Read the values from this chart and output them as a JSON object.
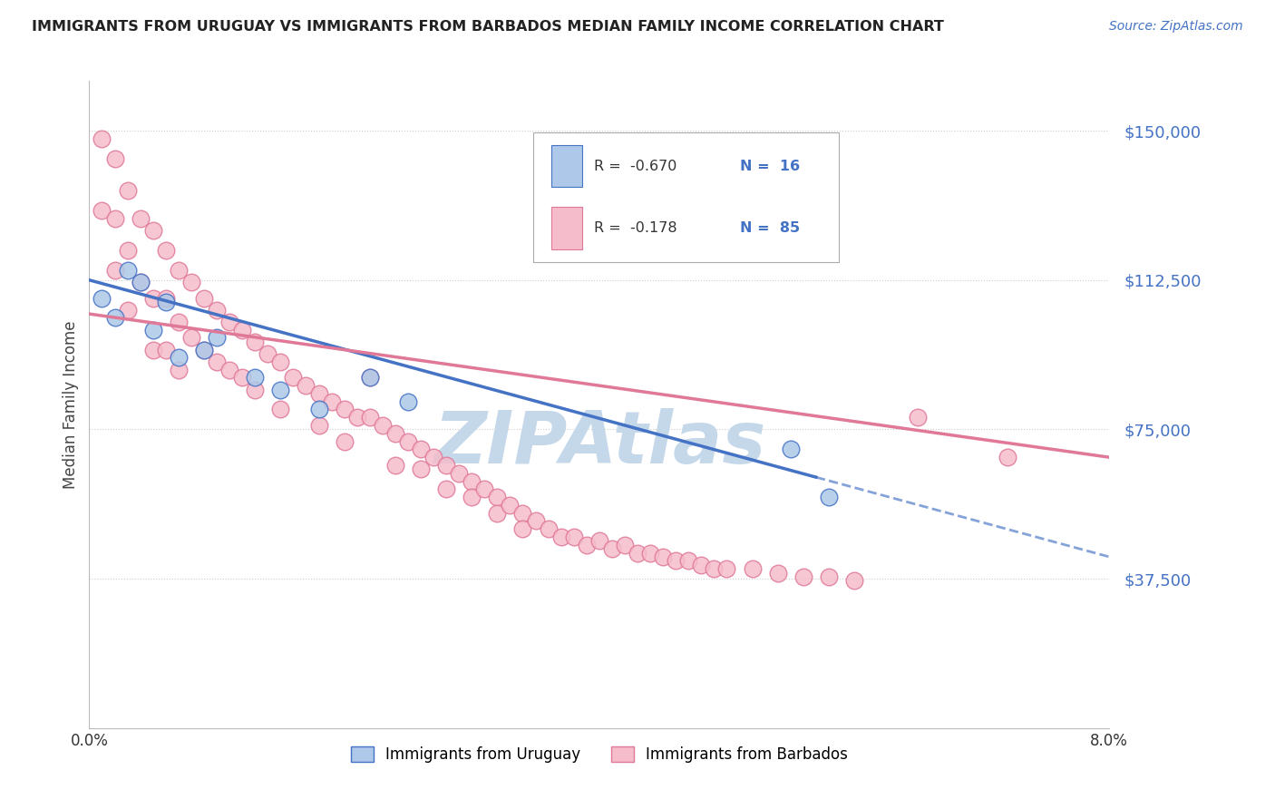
{
  "title": "IMMIGRANTS FROM URUGUAY VS IMMIGRANTS FROM BARBADOS MEDIAN FAMILY INCOME CORRELATION CHART",
  "source": "Source: ZipAtlas.com",
  "ylabel": "Median Family Income",
  "ytick_labels": [
    "$37,500",
    "$75,000",
    "$112,500",
    "$150,000"
  ],
  "ytick_values": [
    37500,
    75000,
    112500,
    150000
  ],
  "xlim": [
    0.0,
    0.08
  ],
  "ylim": [
    0,
    162500
  ],
  "legend_r_uruguay": "R =  -0.670",
  "legend_n_uruguay": "N =  16",
  "legend_r_barbados": "R =  -0.178",
  "legend_n_barbados": "N =  85",
  "legend_label_uruguay": "Immigrants from Uruguay",
  "legend_label_barbados": "Immigrants from Barbados",
  "color_uruguay": "#adc8e8",
  "color_barbados": "#f5bccb",
  "color_line_uruguay": "#4472c4",
  "color_line_barbados": "#e07898",
  "color_source": "#4472c4",
  "color_yticks": "#4472c4",
  "watermark": "ZIPAtlas",
  "watermark_color": "#c5d8ea",
  "uruguay_x": [
    0.001,
    0.002,
    0.003,
    0.004,
    0.005,
    0.006,
    0.007,
    0.009,
    0.01,
    0.013,
    0.015,
    0.018,
    0.022,
    0.025,
    0.055,
    0.058
  ],
  "uruguay_y": [
    108000,
    103000,
    115000,
    112000,
    100000,
    107000,
    93000,
    95000,
    98000,
    88000,
    85000,
    80000,
    88000,
    82000,
    70000,
    58000
  ],
  "barbados_x": [
    0.001,
    0.001,
    0.002,
    0.002,
    0.002,
    0.003,
    0.003,
    0.003,
    0.004,
    0.004,
    0.005,
    0.005,
    0.005,
    0.006,
    0.006,
    0.006,
    0.007,
    0.007,
    0.007,
    0.008,
    0.008,
    0.009,
    0.009,
    0.01,
    0.01,
    0.011,
    0.011,
    0.012,
    0.012,
    0.013,
    0.013,
    0.014,
    0.015,
    0.015,
    0.016,
    0.017,
    0.018,
    0.018,
    0.019,
    0.02,
    0.02,
    0.021,
    0.022,
    0.022,
    0.023,
    0.024,
    0.024,
    0.025,
    0.026,
    0.026,
    0.027,
    0.028,
    0.028,
    0.029,
    0.03,
    0.03,
    0.031,
    0.032,
    0.032,
    0.033,
    0.034,
    0.034,
    0.035,
    0.036,
    0.037,
    0.038,
    0.039,
    0.04,
    0.041,
    0.042,
    0.043,
    0.044,
    0.045,
    0.046,
    0.047,
    0.048,
    0.049,
    0.05,
    0.052,
    0.054,
    0.056,
    0.058,
    0.06,
    0.065,
    0.072
  ],
  "barbados_y": [
    148000,
    130000,
    143000,
    128000,
    115000,
    135000,
    120000,
    105000,
    128000,
    112000,
    125000,
    108000,
    95000,
    120000,
    108000,
    95000,
    115000,
    102000,
    90000,
    112000,
    98000,
    108000,
    95000,
    105000,
    92000,
    102000,
    90000,
    100000,
    88000,
    97000,
    85000,
    94000,
    92000,
    80000,
    88000,
    86000,
    84000,
    76000,
    82000,
    80000,
    72000,
    78000,
    88000,
    78000,
    76000,
    74000,
    66000,
    72000,
    70000,
    65000,
    68000,
    66000,
    60000,
    64000,
    62000,
    58000,
    60000,
    58000,
    54000,
    56000,
    54000,
    50000,
    52000,
    50000,
    48000,
    48000,
    46000,
    47000,
    45000,
    46000,
    44000,
    44000,
    43000,
    42000,
    42000,
    41000,
    40000,
    40000,
    40000,
    39000,
    38000,
    38000,
    37000,
    78000,
    68000
  ],
  "line_uruguay_x0": 0.0,
  "line_uruguay_y0": 112500,
  "line_uruguay_x1": 0.057,
  "line_uruguay_y1": 63000,
  "line_uruguay_dash_x0": 0.057,
  "line_uruguay_dash_y0": 63000,
  "line_uruguay_dash_x1": 0.08,
  "line_uruguay_dash_y1": 43000,
  "line_barbados_x0": 0.0,
  "line_barbados_y0": 104000,
  "line_barbados_x1": 0.08,
  "line_barbados_y1": 68000
}
